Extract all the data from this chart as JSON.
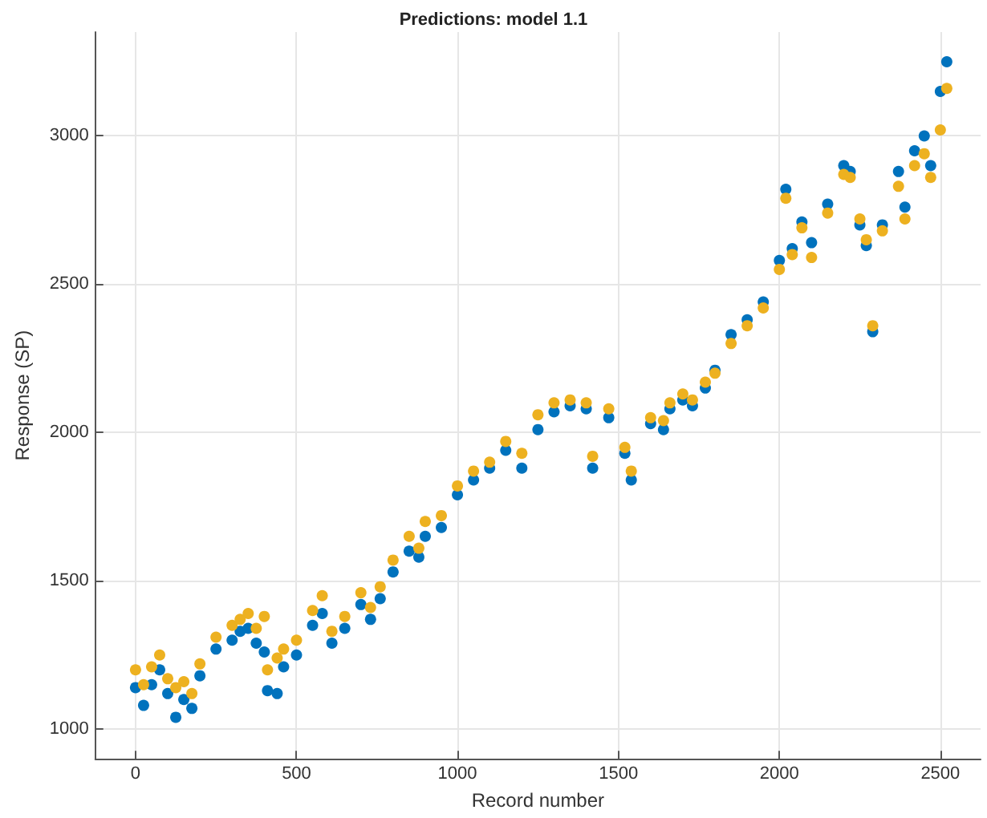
{
  "chart_data": {
    "type": "scatter",
    "title": "Predictions: model 1.1",
    "xlabel": "Record number",
    "ylabel": "Response (SP)",
    "xlim": [
      -125,
      2625
    ],
    "ylim": [
      900,
      3350
    ],
    "xticks": [
      0,
      500,
      1000,
      1500,
      2000,
      2500
    ],
    "yticks": [
      1000,
      1500,
      2000,
      2500,
      3000
    ],
    "grid": true,
    "marker": "circle",
    "x": [
      0,
      25,
      50,
      75,
      100,
      125,
      150,
      175,
      200,
      250,
      300,
      325,
      350,
      375,
      400,
      410,
      440,
      460,
      500,
      550,
      580,
      610,
      650,
      700,
      730,
      760,
      800,
      850,
      880,
      900,
      950,
      1000,
      1050,
      1100,
      1150,
      1200,
      1250,
      1300,
      1350,
      1400,
      1420,
      1470,
      1520,
      1540,
      1600,
      1640,
      1660,
      1700,
      1730,
      1770,
      1800,
      1850,
      1900,
      1950,
      2000,
      2020,
      2040,
      2070,
      2100,
      2150,
      2200,
      2220,
      2250,
      2270,
      2290,
      2320,
      2370,
      2390,
      2420,
      2450,
      2470,
      2500,
      2520
    ],
    "series": [
      {
        "color": "#0072bd",
        "values": [
          1140,
          1080,
          1150,
          1200,
          1120,
          1040,
          1100,
          1070,
          1180,
          1270,
          1300,
          1330,
          1340,
          1290,
          1260,
          1130,
          1120,
          1210,
          1250,
          1350,
          1390,
          1290,
          1340,
          1420,
          1370,
          1440,
          1530,
          1600,
          1580,
          1650,
          1680,
          1790,
          1840,
          1880,
          1940,
          1880,
          2010,
          2070,
          2090,
          2080,
          1880,
          2050,
          1930,
          1840,
          2030,
          2010,
          2080,
          2110,
          2090,
          2150,
          2210,
          2330,
          2380,
          2440,
          2580,
          2820,
          2620,
          2710,
          2640,
          2770,
          2900,
          2880,
          2700,
          2630,
          2340,
          2700,
          2880,
          2760,
          2950,
          3000,
          2900,
          3150,
          3250
        ]
      },
      {
        "color": "#edb120",
        "values": [
          1200,
          1150,
          1210,
          1250,
          1170,
          1140,
          1160,
          1120,
          1220,
          1310,
          1350,
          1370,
          1390,
          1340,
          1380,
          1200,
          1240,
          1270,
          1300,
          1400,
          1450,
          1330,
          1380,
          1460,
          1410,
          1480,
          1570,
          1650,
          1610,
          1700,
          1720,
          1820,
          1870,
          1900,
          1970,
          1930,
          2060,
          2100,
          2110,
          2100,
          1920,
          2080,
          1950,
          1870,
          2050,
          2040,
          2100,
          2130,
          2110,
          2170,
          2200,
          2300,
          2360,
          2420,
          2550,
          2790,
          2600,
          2690,
          2590,
          2740,
          2870,
          2860,
          2720,
          2650,
          2360,
          2680,
          2830,
          2720,
          2900,
          2940,
          2860,
          3020,
          3160
        ]
      }
    ]
  }
}
